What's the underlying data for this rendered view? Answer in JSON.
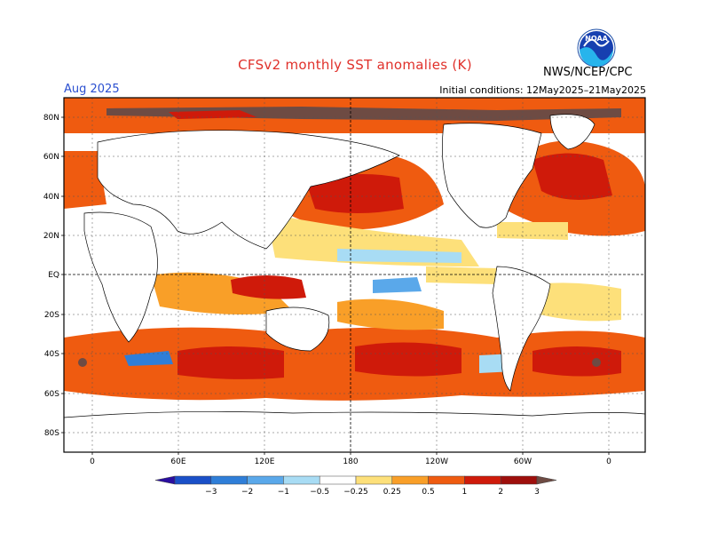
{
  "title": "CFSv2 monthly SST anomalies (K)",
  "target_month": "Aug 2025",
  "initial_conditions": "Initial conditions: 12May2025–21May2025",
  "agency": "NWS/NCEP/CPC",
  "logo_text": "NOAA",
  "lat_labels": [
    "80N",
    "60N",
    "40N",
    "20N",
    "EQ",
    "20S",
    "40S",
    "60S",
    "80S"
  ],
  "lon_labels": [
    "0",
    "60E",
    "120E",
    "180",
    "120W",
    "60W",
    "0"
  ],
  "colorbar": {
    "ticks": [
      "−3",
      "−2",
      "−1",
      "−0.5",
      "−0.25",
      "0.25",
      "0.5",
      "1",
      "2",
      "3"
    ],
    "colors": [
      "#2a0ea0",
      "#1a50c8",
      "#2f7ed8",
      "#5aa8ea",
      "#a8dcf4",
      "#ffffff",
      "#fde07a",
      "#f99f28",
      "#ef5b10",
      "#cf1a0a",
      "#9e0f0c",
      "#6e4b43"
    ]
  }
}
